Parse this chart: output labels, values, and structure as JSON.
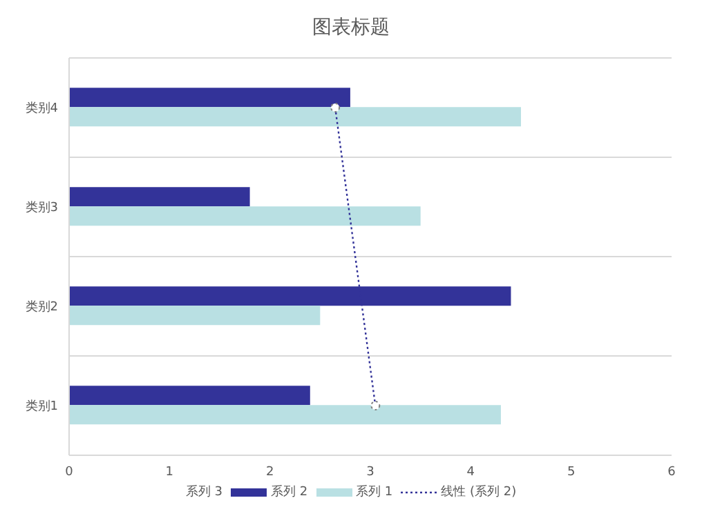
{
  "chart_data": {
    "type": "bar",
    "orientation": "horizontal",
    "title": "图表标题",
    "categories": [
      "类别4",
      "类别3",
      "类别2",
      "类别1"
    ],
    "series": [
      {
        "name": "系列 3",
        "values": [
          null,
          null,
          null,
          null
        ]
      },
      {
        "name": "系列 2",
        "color": "#333399",
        "values": [
          2.8,
          1.8,
          4.4,
          2.4
        ]
      },
      {
        "name": "系列 1",
        "color": "#b9e0e3",
        "values": [
          4.5,
          3.5,
          2.5,
          4.3
        ]
      },
      {
        "name": "线性 (系列 2)",
        "type": "line",
        "color": "#333399",
        "line_style": "dotted",
        "marker": "circle",
        "values": [
          2.65,
          null,
          null,
          3.05
        ]
      }
    ],
    "xlim": [
      0,
      6
    ],
    "xticks": [
      0,
      1,
      2,
      3,
      4,
      5,
      6
    ],
    "grid": "y",
    "legend": "bottom"
  }
}
